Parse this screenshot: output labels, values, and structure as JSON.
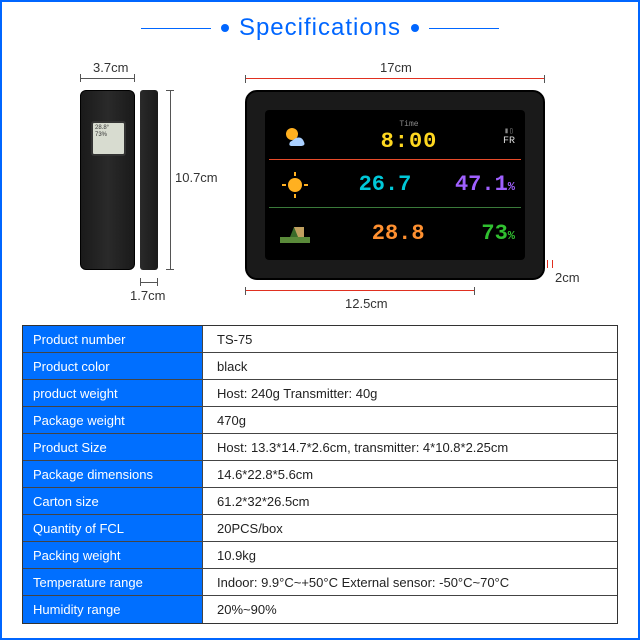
{
  "header": {
    "title": "Specifications",
    "accent_color": "#0066ff"
  },
  "sensor": {
    "dim_top": "3.7cm",
    "dim_side": "10.7cm",
    "dim_bottom": "1.7cm",
    "screen_line1": "28.8°",
    "screen_line2": "73%"
  },
  "display": {
    "dim_top": "17cm",
    "dim_bottom": "12.5cm",
    "dim_right_depth": "2cm",
    "time": "8:00",
    "time_label": "Time",
    "day": "FR",
    "temp_in": "26.7",
    "hum_in": "47.1",
    "temp_out": "28.8",
    "hum_out": "73",
    "colors": {
      "time": "#ffd820",
      "temp_in": "#00c8d8",
      "hum_in": "#a060ff",
      "temp_out": "#ff9030",
      "hum_out": "#30c030",
      "divider1": "#e84b2a",
      "divider2": "#3a7a3a"
    }
  },
  "specs": {
    "key_bg": "#006fff",
    "key_color": "#ffffff",
    "val_bg": "#ffffff",
    "val_color": "#222222",
    "border_color": "#444444",
    "rows": [
      {
        "key": "Product number",
        "val": "TS-75"
      },
      {
        "key": "Product color",
        "val": "black"
      },
      {
        "key": "product weight",
        "val": "Host: 240g Transmitter: 40g"
      },
      {
        "key": "Package weight",
        "val": "470g"
      },
      {
        "key": "Product Size",
        "val": "Host: 13.3*14.7*2.6cm, transmitter: 4*10.8*2.25cm"
      },
      {
        "key": "Package dimensions",
        "val": "14.6*22.8*5.6cm"
      },
      {
        "key": "Carton size",
        "val": "61.2*32*26.5cm"
      },
      {
        "key": "Quantity of FCL",
        "val": "20PCS/box"
      },
      {
        "key": "Packing weight",
        "val": "10.9kg"
      },
      {
        "key": "Temperature range",
        "val": "Indoor: 9.9°C~+50°C External sensor: -50°C~70°C"
      },
      {
        "key": "Humidity range",
        "val": "20%~90%"
      }
    ]
  }
}
